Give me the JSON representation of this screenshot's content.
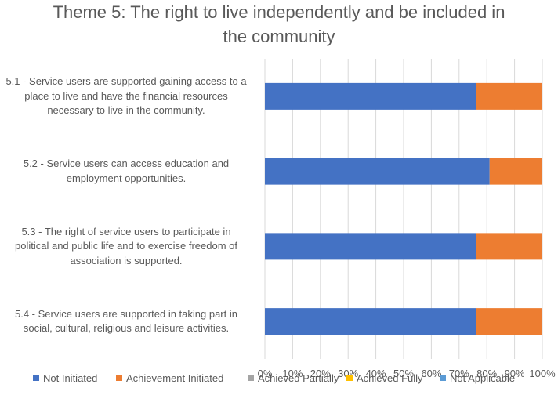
{
  "chart_data": {
    "type": "bar",
    "orientation": "horizontal",
    "stacked": true,
    "title": [
      "Theme 5: The right to live independently and be included in",
      "the community"
    ],
    "categories": [
      [
        "5.1 - Service users are supported gaining access to a",
        "place to live and have the financial resources",
        "necessary to live in the community."
      ],
      [
        "5.2 - Service users can access education and",
        "employment opportunities."
      ],
      [
        "5.3 - The right of service users to participate in",
        "political and public life and to exercise freedom of",
        "association is supported."
      ],
      [
        "5.4 - Service users are supported in taking part in",
        "social, cultural, religious and leisure activities."
      ]
    ],
    "series": [
      {
        "name": "Not Initiated",
        "color": "#4472C4",
        "values": [
          76,
          81,
          76,
          76
        ]
      },
      {
        "name": "Achievement Initiated",
        "color": "#ED7D31",
        "values": [
          24,
          19,
          24,
          24
        ]
      },
      {
        "name": "Achieved Partially",
        "color": "#A5A5A5",
        "values": [
          0,
          0,
          0,
          0
        ]
      },
      {
        "name": "Achieved Fully",
        "color": "#FFC000",
        "values": [
          0,
          0,
          0,
          0
        ]
      },
      {
        "name": "Not Applicable",
        "color": "#5B9BD5",
        "values": [
          0,
          0,
          0,
          0
        ]
      }
    ],
    "xlim": [
      0,
      100
    ],
    "xticks": [
      "0%",
      "10%",
      "20%",
      "30%",
      "40%",
      "50%",
      "60%",
      "70%",
      "80%",
      "90%",
      "100%"
    ],
    "grid": "vertical",
    "legend": "bottom"
  }
}
